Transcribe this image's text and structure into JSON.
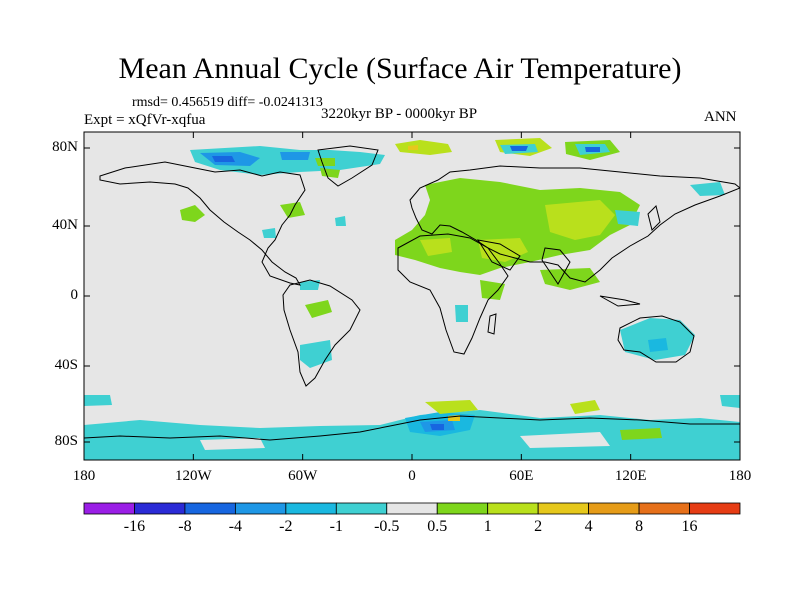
{
  "title": "Mean Annual Cycle (Surface Air Temperature)",
  "stats": "rmsd= 0.456519 diff= -0.0241313",
  "experiment": "Expt = xQfVr-xqfua",
  "period": "3220kyr BP - 0000kyr BP",
  "season": "ANN",
  "map": {
    "ocean_color": "#e6e6e6",
    "coast_color": "#000000",
    "y_ticks": [
      "80N",
      "40N",
      "0",
      "40S",
      "80S"
    ],
    "x_ticks": [
      "180",
      "120W",
      "60W",
      "0",
      "60E",
      "120E",
      "180"
    ]
  },
  "colorbar": {
    "colors": [
      "#9a1ee6",
      "#2b2bd6",
      "#1766e0",
      "#1e97e6",
      "#1ab8e0",
      "#3fd0d2",
      "#e6e6e6",
      "#7ed61c",
      "#b9e01c",
      "#e6c81c",
      "#e69c18",
      "#e6701a",
      "#e63c14"
    ],
    "labels": [
      "-16",
      "-8",
      "-4",
      "-2",
      "-1",
      "-0.5",
      "0.5",
      "1",
      "2",
      "4",
      "8",
      "16"
    ]
  }
}
